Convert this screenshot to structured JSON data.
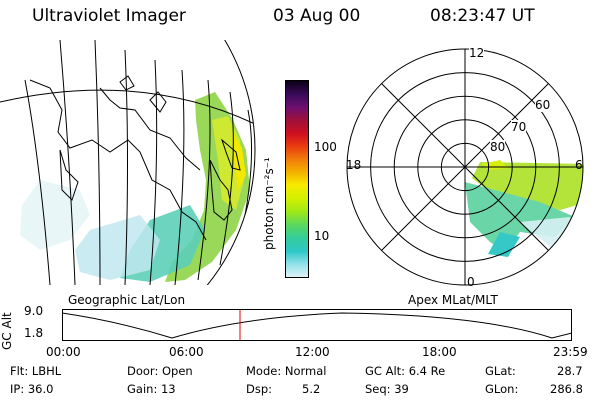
{
  "header": {
    "instrument": "Ultraviolet Imager",
    "date": "03 Aug 00",
    "time": "08:23:47 UT"
  },
  "colorbar": {
    "unit_label": "photon cm⁻²s⁻¹",
    "tick_labels": [
      "100",
      "10"
    ],
    "colors": [
      "#0b0015",
      "#3a0a5a",
      "#6a1070",
      "#a0103c",
      "#d01020",
      "#e83a10",
      "#f07c0a",
      "#f4b400",
      "#f8ea00",
      "#d2f000",
      "#9ce81a",
      "#5ed85a",
      "#34cc9a",
      "#2ec8c8",
      "#8ce0e8",
      "#dff3f6"
    ]
  },
  "left_panel": {
    "label": "Geographic Lat/Lon"
  },
  "right_panel": {
    "label": "Apex MLat/MLT",
    "mlt_labels": {
      "top": "12",
      "left": "18",
      "right": "6",
      "bottom": "0"
    },
    "mlat_labels": [
      "60",
      "70",
      "80"
    ]
  },
  "altitude_plot": {
    "y_label": "GC Alt",
    "y_ticks": [
      "9.0",
      "1.8"
    ],
    "x_ticks": [
      "00:00",
      "06:00",
      "12:00",
      "18:00",
      "23:59"
    ],
    "current_time_fraction": 0.349,
    "marker_color": "#e00000"
  },
  "info": {
    "flt": "Flt: LBHL",
    "ip": "IP: 36.0",
    "door": "Door: Open",
    "gain": "Gain: 13",
    "mode": "Mode: Normal",
    "dsp_label": "Dsp:",
    "dsp_value": "5.2",
    "gc_alt": "GC Alt: 6.4 Re",
    "seq": "Seq: 39",
    "glat_label": "GLat:",
    "glat_value": "28.7",
    "glon_label": "GLon:",
    "glon_value": "286.8"
  }
}
